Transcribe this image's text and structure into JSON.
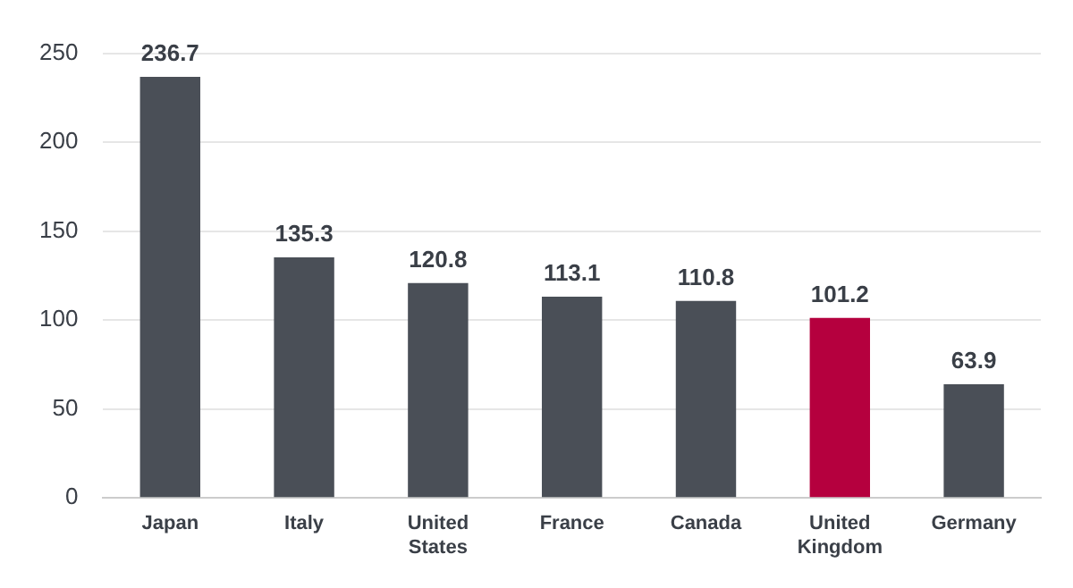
{
  "chart_data": {
    "type": "bar",
    "categories": [
      "Japan",
      "Italy",
      "United States",
      "France",
      "Canada",
      "United Kingdom",
      "Germany"
    ],
    "values": [
      236.7,
      135.3,
      120.8,
      113.1,
      110.8,
      101.2,
      63.9
    ],
    "colors": [
      "#4a4f57",
      "#4a4f57",
      "#4a4f57",
      "#4a4f57",
      "#4a4f57",
      "#b5003e",
      "#4a4f57"
    ],
    "ylim": [
      0,
      250
    ],
    "yticks": [
      0,
      50,
      100,
      150,
      200,
      250
    ],
    "grid": "y",
    "data_labels": true,
    "legend": false
  }
}
